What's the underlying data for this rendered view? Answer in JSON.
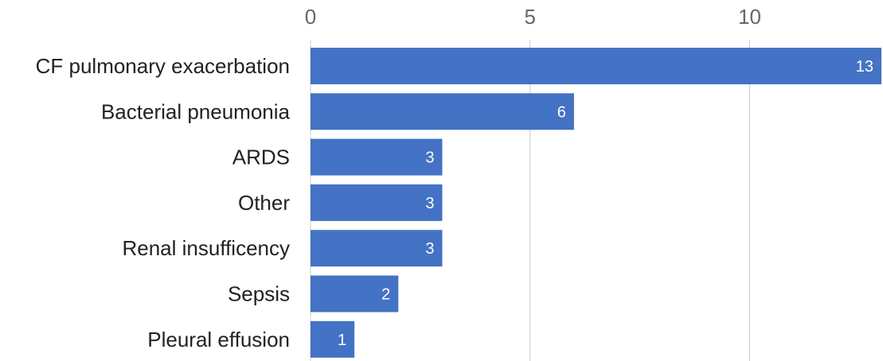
{
  "chart_data": {
    "type": "bar",
    "orientation": "horizontal",
    "categories": [
      "CF pulmonary exacerbation",
      "Bacterial pneumonia",
      "ARDS",
      "Other",
      "Renal insufficency",
      "Sepsis",
      "Pleural effusion"
    ],
    "values": [
      13,
      6,
      3,
      3,
      3,
      2,
      1
    ],
    "x_ticks": [
      0,
      5,
      10
    ],
    "xlim": [
      0,
      13
    ],
    "xaxis_position": "top",
    "grid": true,
    "bar_color": "#4472c4",
    "data_label_color": "#ffffff",
    "title": "",
    "xlabel": "",
    "ylabel": ""
  }
}
